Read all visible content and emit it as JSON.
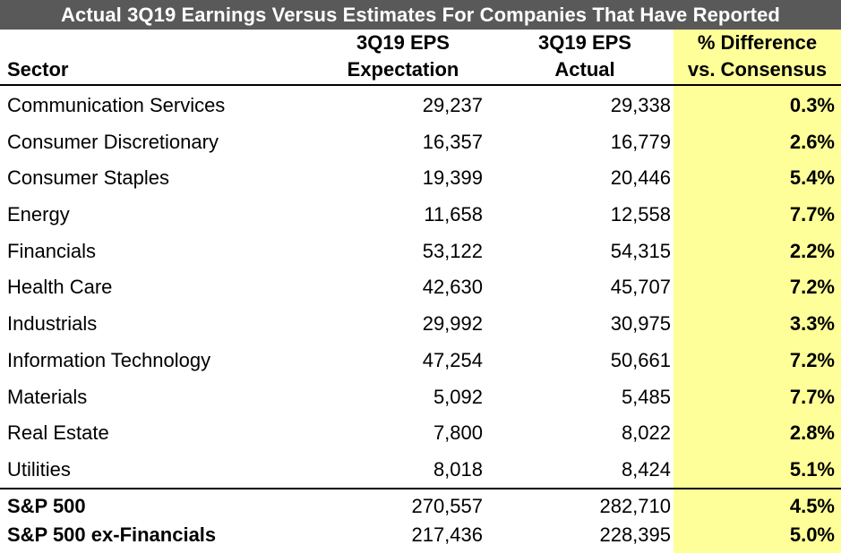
{
  "chart_data": {
    "type": "table",
    "title": "Actual 3Q19 Earnings Versus Estimates For Companies That Have Reported",
    "columns": {
      "sector": "Sector",
      "expectation_line1": "3Q19 EPS",
      "expectation_line2": "Expectation",
      "actual_line1": "3Q19 EPS",
      "actual_line2": "Actual",
      "difference_line1": "% Difference",
      "difference_line2": "vs. Consensus"
    },
    "rows": [
      {
        "sector": "Communication Services",
        "expectation": "29,237",
        "actual": "29,338",
        "difference": "0.3%"
      },
      {
        "sector": "Consumer Discretionary",
        "expectation": "16,357",
        "actual": "16,779",
        "difference": "2.6%"
      },
      {
        "sector": "Consumer Staples",
        "expectation": "19,399",
        "actual": "20,446",
        "difference": "5.4%"
      },
      {
        "sector": "Energy",
        "expectation": "11,658",
        "actual": "12,558",
        "difference": "7.7%"
      },
      {
        "sector": "Financials",
        "expectation": "53,122",
        "actual": "54,315",
        "difference": "2.2%"
      },
      {
        "sector": "Health Care",
        "expectation": "42,630",
        "actual": "45,707",
        "difference": "7.2%"
      },
      {
        "sector": "Industrials",
        "expectation": "29,992",
        "actual": "30,975",
        "difference": "3.3%"
      },
      {
        "sector": "Information Technology",
        "expectation": "47,254",
        "actual": "50,661",
        "difference": "7.2%"
      },
      {
        "sector": "Materials",
        "expectation": "5,092",
        "actual": "5,485",
        "difference": "7.7%"
      },
      {
        "sector": "Real Estate",
        "expectation": "7,800",
        "actual": "8,022",
        "difference": "2.8%"
      },
      {
        "sector": "Utilities",
        "expectation": "8,018",
        "actual": "8,424",
        "difference": "5.1%"
      }
    ],
    "totals": [
      {
        "sector": "S&P 500",
        "expectation": "270,557",
        "actual": "282,710",
        "difference": "4.5%"
      },
      {
        "sector": "S&P 500 ex-Financials",
        "expectation": "217,436",
        "actual": "228,395",
        "difference": "5.0%"
      }
    ]
  },
  "colors": {
    "title_bg": "#595959",
    "highlight": "#ffff99"
  }
}
